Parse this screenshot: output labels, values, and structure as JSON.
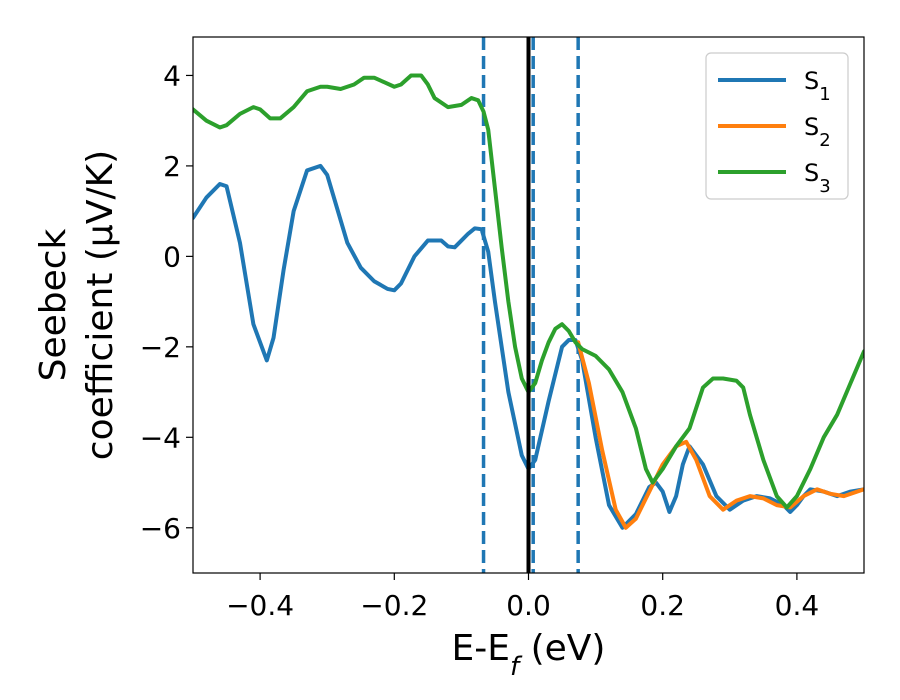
{
  "chart_data": {
    "type": "line",
    "xlabel_main": "E-E",
    "xlabel_sub": "f",
    "xlabel_unit": " (eV)",
    "ylabel_line1": "Seebeck",
    "ylabel_line2": "coefficient  (μV/K)",
    "xlim": [
      -0.5,
      0.5
    ],
    "ylim": [
      -7,
      4.85
    ],
    "xticks": [
      -0.4,
      -0.2,
      0.0,
      0.2,
      0.4
    ],
    "xtick_labels": [
      "−0.4",
      "−0.2",
      "0.0",
      "0.2",
      "0.4"
    ],
    "yticks": [
      4,
      2,
      0,
      -2,
      -4,
      -6
    ],
    "ytick_labels": [
      "4",
      "2",
      "0",
      "−2",
      "−4",
      "−6"
    ],
    "grid": false,
    "legend_position": "top-right",
    "vertical_lines": [
      {
        "x": -0.067,
        "style": "dashed",
        "color": "#1f77b4"
      },
      {
        "x": 0.0,
        "style": "solid",
        "color": "#000000"
      },
      {
        "x": 0.007,
        "style": "dashed",
        "color": "#1f77b4"
      },
      {
        "x": 0.074,
        "style": "dashed",
        "color": "#1f77b4"
      }
    ],
    "series": [
      {
        "name": "S",
        "sub": "1",
        "color": "#1f77b4",
        "x": [
          -0.5,
          -0.48,
          -0.46,
          -0.45,
          -0.43,
          -0.41,
          -0.39,
          -0.38,
          -0.365,
          -0.35,
          -0.33,
          -0.31,
          -0.3,
          -0.29,
          -0.27,
          -0.25,
          -0.23,
          -0.21,
          -0.2,
          -0.19,
          -0.17,
          -0.15,
          -0.13,
          -0.12,
          -0.11,
          -0.1,
          -0.09,
          -0.08,
          -0.07,
          -0.06,
          -0.05,
          -0.03,
          -0.01,
          0.0,
          0.01,
          0.03,
          0.05,
          0.06,
          0.07,
          0.08,
          0.1,
          0.12,
          0.14,
          0.16,
          0.18,
          0.19,
          0.2,
          0.21,
          0.22,
          0.23,
          0.24,
          0.26,
          0.28,
          0.3,
          0.32,
          0.34,
          0.36,
          0.38,
          0.39,
          0.4,
          0.41,
          0.42,
          0.44,
          0.46,
          0.48,
          0.5
        ],
        "y": [
          0.85,
          1.3,
          1.6,
          1.55,
          0.3,
          -1.5,
          -2.3,
          -1.8,
          -0.3,
          1.0,
          1.9,
          2.0,
          1.8,
          1.3,
          0.3,
          -0.25,
          -0.55,
          -0.72,
          -0.75,
          -0.6,
          0.0,
          0.35,
          0.35,
          0.22,
          0.2,
          0.35,
          0.5,
          0.62,
          0.6,
          0.1,
          -1.0,
          -3.0,
          -4.4,
          -4.7,
          -4.5,
          -3.2,
          -2.0,
          -1.85,
          -1.85,
          -2.3,
          -4.0,
          -5.5,
          -6.0,
          -5.7,
          -5.1,
          -5.0,
          -5.2,
          -5.65,
          -5.3,
          -4.6,
          -4.2,
          -4.6,
          -5.3,
          -5.6,
          -5.4,
          -5.3,
          -5.35,
          -5.5,
          -5.65,
          -5.5,
          -5.3,
          -5.15,
          -5.2,
          -5.3,
          -5.2,
          -5.15
        ]
      },
      {
        "name": "S",
        "sub": "2",
        "color": "#ff7f0e",
        "x": [
          0.074,
          0.09,
          0.11,
          0.13,
          0.145,
          0.16,
          0.18,
          0.2,
          0.22,
          0.235,
          0.25,
          0.27,
          0.29,
          0.31,
          0.33,
          0.35,
          0.37,
          0.39,
          0.41,
          0.43,
          0.45,
          0.47,
          0.5
        ],
        "y": [
          -1.9,
          -2.8,
          -4.3,
          -5.6,
          -6.0,
          -5.8,
          -5.2,
          -4.6,
          -4.2,
          -4.1,
          -4.5,
          -5.3,
          -5.6,
          -5.4,
          -5.3,
          -5.35,
          -5.5,
          -5.55,
          -5.3,
          -5.15,
          -5.25,
          -5.3,
          -5.15
        ]
      },
      {
        "name": "S",
        "sub": "3",
        "color": "#2ca02c",
        "x": [
          -0.5,
          -0.48,
          -0.46,
          -0.45,
          -0.43,
          -0.41,
          -0.4,
          -0.385,
          -0.37,
          -0.35,
          -0.33,
          -0.31,
          -0.3,
          -0.28,
          -0.26,
          -0.245,
          -0.23,
          -0.215,
          -0.2,
          -0.19,
          -0.175,
          -0.16,
          -0.15,
          -0.14,
          -0.12,
          -0.1,
          -0.085,
          -0.075,
          -0.067,
          -0.06,
          -0.05,
          -0.04,
          -0.03,
          -0.02,
          -0.01,
          0.0,
          0.01,
          0.02,
          0.03,
          0.04,
          0.05,
          0.06,
          0.07,
          0.08,
          0.1,
          0.12,
          0.14,
          0.16,
          0.175,
          0.185,
          0.2,
          0.22,
          0.24,
          0.26,
          0.275,
          0.29,
          0.31,
          0.32,
          0.33,
          0.35,
          0.37,
          0.385,
          0.4,
          0.42,
          0.44,
          0.46,
          0.48,
          0.5
        ],
        "y": [
          3.25,
          3.0,
          2.85,
          2.9,
          3.15,
          3.3,
          3.25,
          3.05,
          3.05,
          3.3,
          3.65,
          3.75,
          3.75,
          3.7,
          3.8,
          3.95,
          3.95,
          3.85,
          3.75,
          3.8,
          4.0,
          4.0,
          3.8,
          3.5,
          3.3,
          3.35,
          3.5,
          3.45,
          3.2,
          2.8,
          1.5,
          0.2,
          -1.0,
          -2.0,
          -2.7,
          -3.0,
          -2.8,
          -2.3,
          -1.9,
          -1.6,
          -1.5,
          -1.65,
          -1.9,
          -2.05,
          -2.2,
          -2.5,
          -3.0,
          -3.8,
          -4.7,
          -5.0,
          -4.7,
          -4.2,
          -3.8,
          -2.9,
          -2.7,
          -2.7,
          -2.75,
          -2.9,
          -3.5,
          -4.5,
          -5.3,
          -5.55,
          -5.3,
          -4.7,
          -4.0,
          -3.5,
          -2.8,
          -2.1
        ]
      }
    ]
  }
}
